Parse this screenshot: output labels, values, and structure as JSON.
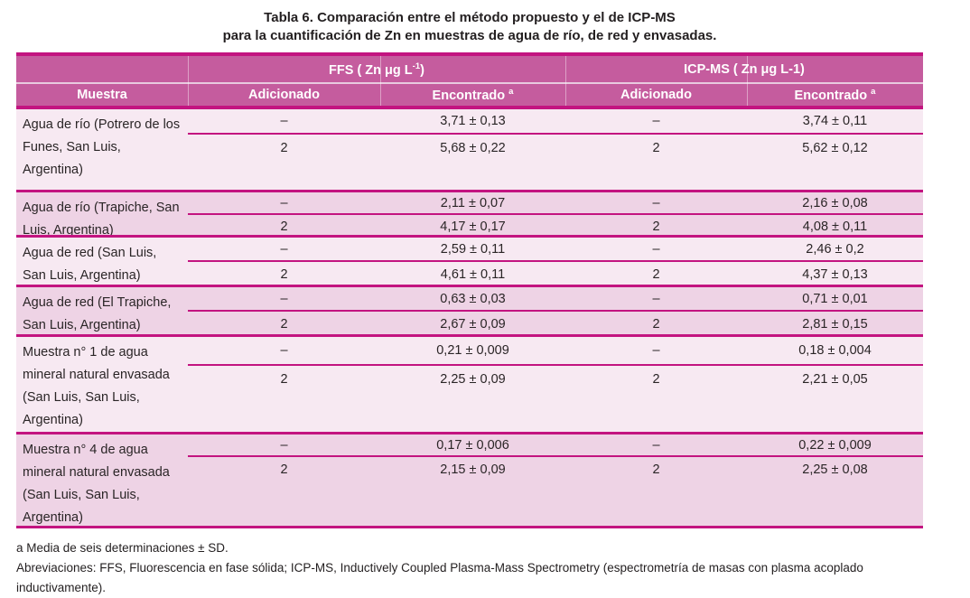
{
  "title": {
    "line1": "Tabla 6. Comparación entre el método propuesto y el de ICP-MS",
    "line2": "para la cuantificación de Zn en muestras de agua de río, de red y envasadas."
  },
  "colors": {
    "accent_line": "#c31480",
    "header_bg": "#c55c9e",
    "row_light_bg": "#f7e9f2",
    "row_dark_bg": "#eed3e5",
    "header_text": "#ffffff",
    "body_text": "#2a2526"
  },
  "table": {
    "method_headers": {
      "ffs_pre": "FFS ( Zn μg L",
      "ffs_sup": "-1",
      "ffs_post": ")",
      "icp": "ICP-MS ( Zn μg L-1)"
    },
    "column_headers": {
      "muestra": "Muestra",
      "adicionado_ffs": "Adicionado",
      "encontrado_ffs": "Encontrado",
      "encontrado_ffs_sup": "a",
      "adicionado_icp": "Adicionado",
      "encontrado_icp": "Encontrado",
      "encontrado_icp_sup": "a"
    },
    "groups": [
      {
        "muestra": "Agua de río (Potrero de los Funes, San Luis, Argentina)",
        "rows": [
          {
            "ffs_adicionado": "–",
            "ffs_encontrado": "3,71 ± 0,13",
            "icp_adicionado": "–",
            "icp_encontrado": "3,74 ± 0,11"
          },
          {
            "ffs_adicionado": "2",
            "ffs_encontrado": "5,68 ± 0,22",
            "icp_adicionado": "2",
            "icp_encontrado": "5,62 ± 0,12"
          }
        ]
      },
      {
        "muestra": "Agua de río (Trapiche, San Luis, Argentina)",
        "rows": [
          {
            "ffs_adicionado": "–",
            "ffs_encontrado": "2,11 ± 0,07",
            "icp_adicionado": "–",
            "icp_encontrado": "2,16 ± 0,08"
          },
          {
            "ffs_adicionado": "2",
            "ffs_encontrado": "4,17 ± 0,17",
            "icp_adicionado": "2",
            "icp_encontrado": "4,08 ± 0,11"
          }
        ]
      },
      {
        "muestra": "Agua de red (San Luis, San Luis, Argentina)",
        "rows": [
          {
            "ffs_adicionado": "–",
            "ffs_encontrado": "2,59 ± 0,11",
            "icp_adicionado": "–",
            "icp_encontrado": "2,46 ± 0,2"
          },
          {
            "ffs_adicionado": "2",
            "ffs_encontrado": "4,61 ± 0,11",
            "icp_adicionado": "2",
            "icp_encontrado": "4,37 ± 0,13"
          }
        ]
      },
      {
        "muestra": "Agua de red (El Trapiche, San Luis, Argentina)",
        "rows": [
          {
            "ffs_adicionado": "–",
            "ffs_encontrado": "0,63 ± 0,03",
            "icp_adicionado": "–",
            "icp_encontrado": "0,71 ± 0,01"
          },
          {
            "ffs_adicionado": "2",
            "ffs_encontrado": "2,67 ± 0,09",
            "icp_adicionado": "2",
            "icp_encontrado": "2,81 ± 0,15"
          }
        ]
      },
      {
        "muestra": "Muestra n° 1 de agua mineral natural envasada (San Luis, San Luis, Argentina)",
        "rows": [
          {
            "ffs_adicionado": "–",
            "ffs_encontrado": "0,21 ± 0,009",
            "icp_adicionado": "–",
            "icp_encontrado": "0,18 ± 0,004"
          },
          {
            "ffs_adicionado": "2",
            "ffs_encontrado": "2,25 ± 0,09",
            "icp_adicionado": "2",
            "icp_encontrado": "2,21 ± 0,05"
          }
        ]
      },
      {
        "muestra": "Muestra n° 4 de agua mineral natural envasada (San Luis, San Luis, Argentina)",
        "rows": [
          {
            "ffs_adicionado": "–",
            "ffs_encontrado": "0,17 ± 0,006",
            "icp_adicionado": "–",
            "icp_encontrado": "0,22 ± 0,009"
          },
          {
            "ffs_adicionado": "2",
            "ffs_encontrado": "2,15 ± 0,09",
            "icp_adicionado": "2",
            "icp_encontrado": "2,25 ± 0,08"
          }
        ]
      }
    ]
  },
  "footnotes": {
    "note_a": "a Media de seis determinaciones ± SD.",
    "abbreviations": "Abreviaciones: FFS, Fluorescencia en fase sólida; ICP-MS, Inductively Coupled Plasma-Mass Spectrometry (espectrometría de masas con plasma acoplado inductivamente)."
  }
}
